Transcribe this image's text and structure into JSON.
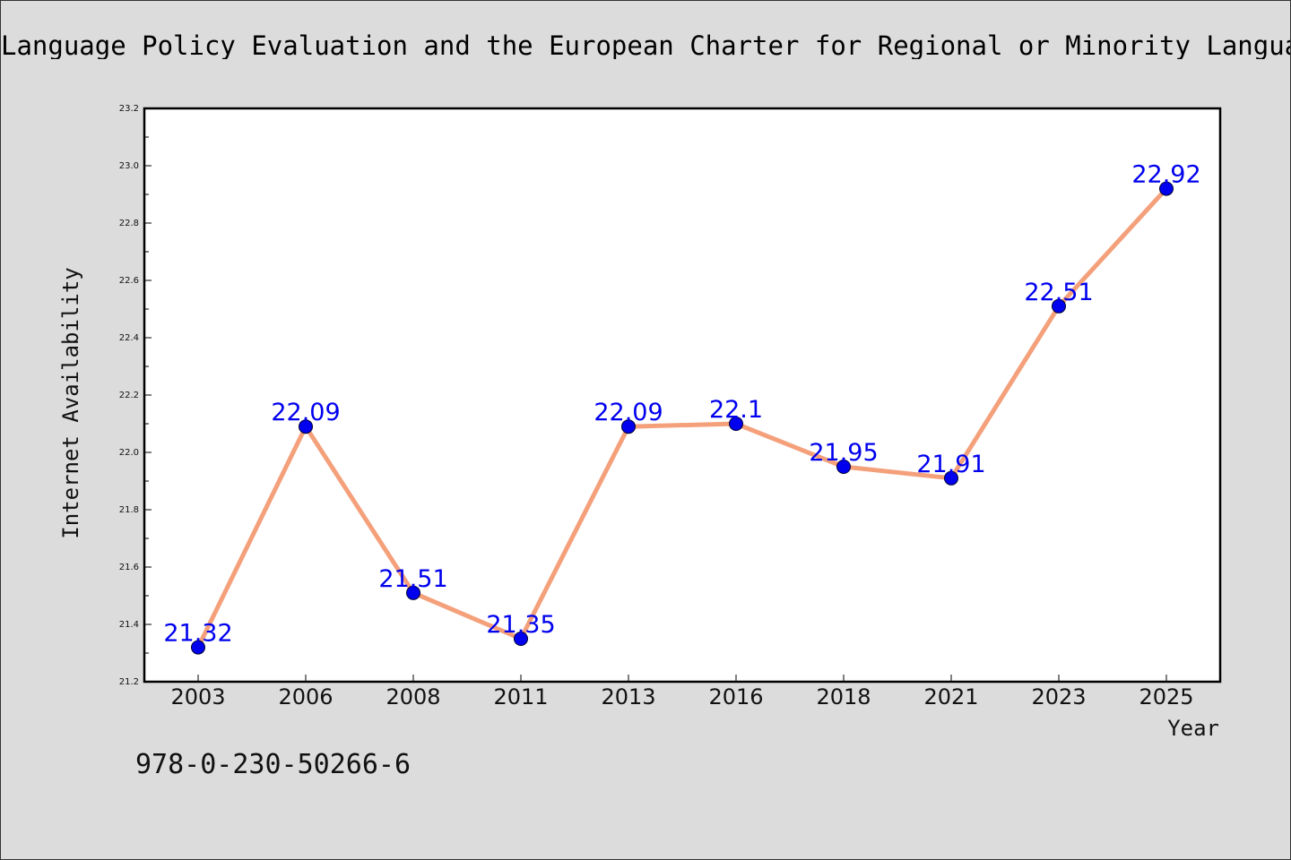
{
  "page": {
    "title": "Language Policy Evaluation and the European Charter for Regional or Minority Languages",
    "isbn": "978-0-230-50266-6"
  },
  "chart_data": {
    "type": "line",
    "title": "Language Policy Evaluation and the European Charter for Regional or Minority Languages",
    "xlabel": "Year",
    "ylabel": "Internet Availability",
    "categories": [
      "2003",
      "2006",
      "2008",
      "2011",
      "2013",
      "2016",
      "2018",
      "2021",
      "2023",
      "2025"
    ],
    "series": [
      {
        "values": [
          21.32,
          22.09,
          21.51,
          21.35,
          22.09,
          22.1,
          21.95,
          21.91,
          22.51,
          22.92
        ],
        "labels": [
          "21.32",
          "22.09",
          "21.51",
          "21.35",
          "22.09",
          "22.1",
          "21.95",
          "21.91",
          "22.51",
          "22.92"
        ]
      }
    ],
    "ylim": [
      21.2,
      23.2
    ],
    "yticks": [
      "21.2",
      "21.4",
      "21.6",
      "21.8",
      "22.0",
      "22.2",
      "22.4",
      "22.6",
      "22.8",
      "23.0",
      "23.2"
    ],
    "grid": false,
    "legend": "none",
    "colors": {
      "line": "#f4a07a",
      "marker": "#0000ee",
      "data_label": "#0000ee",
      "plot_background": "#ffffff",
      "page_background": "#dcdcdc"
    }
  }
}
